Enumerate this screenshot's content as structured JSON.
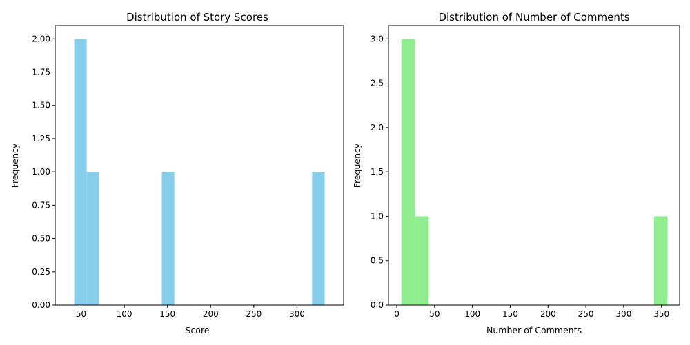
{
  "chart_data": [
    {
      "type": "bar",
      "title": "Distribution of Story Scores",
      "xlabel": "Score",
      "ylabel": "Frequency",
      "color": "#87ceeb",
      "bins": [
        {
          "x0": 42,
          "x1": 56.5,
          "count": 2
        },
        {
          "x0": 56.5,
          "x1": 71,
          "count": 1
        },
        {
          "x0": 143.5,
          "x1": 158,
          "count": 1
        },
        {
          "x0": 317.5,
          "x1": 332,
          "count": 1
        }
      ],
      "xlim": [
        20,
        354
      ],
      "ylim": [
        0,
        2.1
      ],
      "xticks": [
        50,
        100,
        150,
        200,
        250,
        300
      ],
      "yticks": [
        0,
        0.25,
        0.5,
        0.75,
        1.0,
        1.25,
        1.5,
        1.75,
        2.0
      ],
      "ytick_labels": [
        "0.00",
        "0.25",
        "0.50",
        "0.75",
        "1.00",
        "1.25",
        "1.50",
        "1.75",
        "2.00"
      ],
      "grid": false,
      "legend": false
    },
    {
      "type": "bar",
      "title": "Distribution of Number of Comments",
      "xlabel": "Number of Comments",
      "ylabel": "Frequency",
      "color": "#90ee90",
      "bins": [
        {
          "x0": 6,
          "x1": 24,
          "count": 3
        },
        {
          "x0": 24,
          "x1": 42,
          "count": 1
        },
        {
          "x0": 340,
          "x1": 358,
          "count": 1
        }
      ],
      "xlim": [
        -11,
        374
      ],
      "ylim": [
        0,
        3.15
      ],
      "xticks": [
        0,
        50,
        100,
        150,
        200,
        250,
        300,
        350
      ],
      "yticks": [
        0,
        0.5,
        1.0,
        1.5,
        2.0,
        2.5,
        3.0
      ],
      "ytick_labels": [
        "0.0",
        "0.5",
        "1.0",
        "1.5",
        "2.0",
        "2.5",
        "3.0"
      ],
      "grid": false,
      "legend": false
    }
  ]
}
